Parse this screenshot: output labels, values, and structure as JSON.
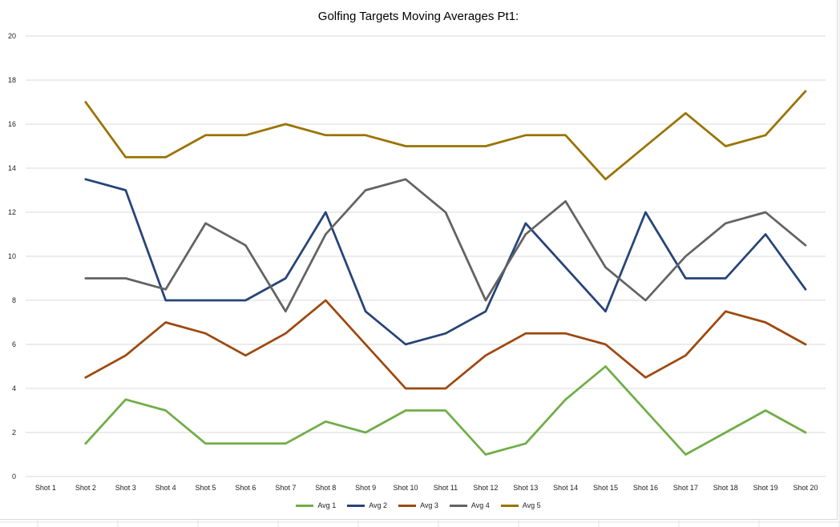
{
  "chart_data": {
    "type": "line",
    "title": "Golfing Targets Moving Averages Pt1:",
    "categories": [
      "Shot 1",
      "Shot 2",
      "Shot 3",
      "Shot 4",
      "Shot 5",
      "Shot 6",
      "Shot 7",
      "Shot 8",
      "Shot 9",
      "Shot 10",
      "Shot 11",
      "Shot 12",
      "Shot 13",
      "Shot 14",
      "Shot 15",
      "Shot 16",
      "Shot 17",
      "Shot 18",
      "Shot 19",
      "Shot 20"
    ],
    "ylim": [
      0,
      20
    ],
    "yticks": [
      "0",
      "2",
      "4",
      "6",
      "8",
      "10",
      "12",
      "14",
      "16",
      "18",
      "20"
    ],
    "grid": true,
    "legend_position": "bottom",
    "series": [
      {
        "name": "Avg 1",
        "color": "#70ad47",
        "values": [
          null,
          1.5,
          3.5,
          3,
          1.5,
          1.5,
          1.5,
          2.5,
          2,
          3,
          3,
          1,
          1.5,
          3.5,
          5,
          3,
          1,
          2,
          3,
          2
        ]
      },
      {
        "name": "Avg 2",
        "color": "#264478",
        "values": [
          null,
          13.5,
          13,
          8,
          8,
          8,
          9,
          12,
          7.5,
          6,
          6.5,
          7.5,
          11.5,
          9.5,
          7.5,
          12,
          9,
          9,
          11,
          8.5
        ]
      },
      {
        "name": "Avg 3",
        "color": "#9e480e",
        "values": [
          null,
          4.5,
          5.5,
          7,
          6.5,
          5.5,
          6.5,
          8,
          6,
          4,
          4,
          5.5,
          6.5,
          6.5,
          6,
          4.5,
          5.5,
          7.5,
          7,
          6
        ]
      },
      {
        "name": "Avg 4",
        "color": "#636363",
        "values": [
          null,
          9,
          9,
          8.5,
          11.5,
          10.5,
          7.5,
          11,
          13,
          13.5,
          12,
          8,
          11,
          12.5,
          9.5,
          8,
          10,
          11.5,
          12,
          10.5
        ]
      },
      {
        "name": "Avg 5",
        "color": "#997300",
        "values": [
          null,
          17,
          14.5,
          14.5,
          15.5,
          15.5,
          16,
          15.5,
          15.5,
          15,
          15,
          15,
          15.5,
          15.5,
          13.5,
          15,
          16.5,
          15,
          15.5,
          17.5
        ]
      }
    ]
  }
}
